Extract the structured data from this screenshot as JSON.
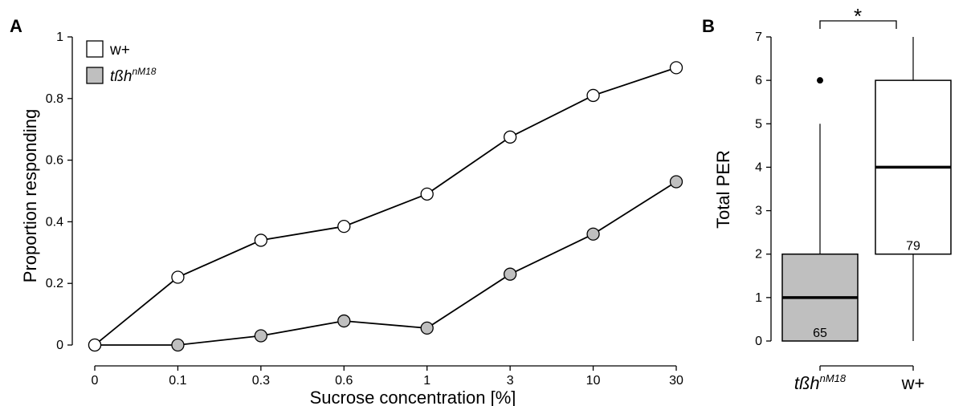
{
  "chart_data": [
    {
      "type": "line",
      "panel_label": "A",
      "xlabel": "Sucrose concentration [%]",
      "ylabel": "Proportion responding",
      "categories": [
        "0",
        "0.1",
        "0.3",
        "0.6",
        "1",
        "3",
        "10",
        "30"
      ],
      "y_ticks": [
        "0",
        "0.2",
        "0.4",
        "0.6",
        "0.8",
        "1"
      ],
      "ylim": [
        0,
        1
      ],
      "grid": false,
      "legend_position": "top-left",
      "series": [
        {
          "name": "w+",
          "color": "#ffffff",
          "values": [
            0,
            0.22,
            0.34,
            0.385,
            0.49,
            0.675,
            0.81,
            0.9
          ]
        },
        {
          "name_base": "tßh",
          "name_sup": "nM18",
          "color": "#bfbfbf",
          "values": [
            0,
            0,
            0.03,
            0.078,
            0.055,
            0.23,
            0.36,
            0.53
          ]
        }
      ]
    },
    {
      "type": "box",
      "panel_label": "B",
      "ylabel": "Total PER",
      "y_ticks": [
        "0",
        "1",
        "2",
        "3",
        "4",
        "5",
        "6",
        "7"
      ],
      "ylim": [
        0,
        7
      ],
      "significance_label": "*",
      "groups": [
        {
          "label_base": "tßh",
          "label_sup": "nM18",
          "color": "#bfbfbf",
          "min": 0,
          "q1": 0,
          "median": 1,
          "q3": 2,
          "max": 5,
          "outliers": [
            6
          ],
          "n": "65"
        },
        {
          "label": "w+",
          "color": "#ffffff",
          "min": 0,
          "q1": 2,
          "median": 4,
          "q3": 6,
          "max": 7,
          "outliers": [],
          "n": "79"
        }
      ]
    }
  ]
}
